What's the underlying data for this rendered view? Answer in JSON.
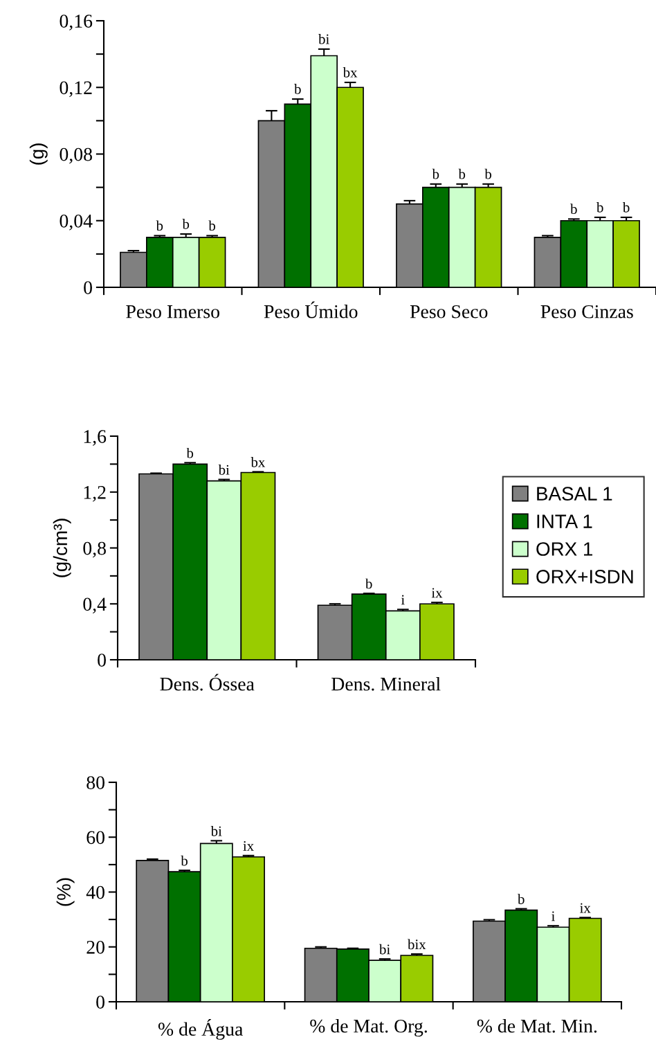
{
  "chart_data": [
    {
      "type": "bar",
      "ylabel": "(g)",
      "categories": [
        "Peso Imerso",
        "Peso Úmido",
        "Peso Seco",
        "Peso Cinzas"
      ],
      "ylim": [
        0,
        0.16
      ],
      "yticks": [
        {
          "value": 0,
          "label": "0"
        },
        {
          "value": 0.02,
          "label": null
        },
        {
          "value": 0.04,
          "label": "0,04"
        },
        {
          "value": 0.06,
          "label": null
        },
        {
          "value": 0.08,
          "label": "0,08"
        },
        {
          "value": 0.1,
          "label": null
        },
        {
          "value": 0.12,
          "label": "0,12"
        },
        {
          "value": 0.14,
          "label": null
        },
        {
          "value": 0.16,
          "label": "0,16"
        }
      ],
      "grid": false,
      "legend": false,
      "series": [
        {
          "color": "#808080",
          "values": [
            0.021,
            0.1,
            0.05,
            0.03
          ],
          "errors": [
            0.001,
            0.006,
            0.002,
            0.001
          ],
          "value_labels": [
            null,
            null,
            null,
            null
          ]
        },
        {
          "color": "#007000",
          "values": [
            0.03,
            0.11,
            0.06,
            0.04
          ],
          "errors": [
            0.001,
            0.003,
            0.002,
            0.001
          ],
          "value_labels": [
            "b",
            "b",
            "b",
            "b"
          ]
        },
        {
          "color": "#ccffcc",
          "values": [
            0.03,
            0.139,
            0.06,
            0.04
          ],
          "errors": [
            0.002,
            0.004,
            0.002,
            0.002
          ],
          "value_labels": [
            "b",
            "bi",
            "b",
            "b"
          ]
        },
        {
          "color": "#99cc00",
          "values": [
            0.03,
            0.12,
            0.06,
            0.04
          ],
          "errors": [
            0.001,
            0.003,
            0.002,
            0.002
          ],
          "value_labels": [
            "b",
            "bx",
            "b",
            "b"
          ]
        }
      ]
    },
    {
      "type": "bar",
      "ylabel": "(g/cm³)",
      "categories": [
        "Dens. Óssea",
        "Dens. Mineral"
      ],
      "ylim": [
        0,
        1.6
      ],
      "yticks": [
        {
          "value": 0,
          "label": "0"
        },
        {
          "value": 0.2,
          "label": null
        },
        {
          "value": 0.4,
          "label": "0,4"
        },
        {
          "value": 0.6,
          "label": null
        },
        {
          "value": 0.8,
          "label": "0,8"
        },
        {
          "value": 1.0,
          "label": null
        },
        {
          "value": 1.2,
          "label": "1,2"
        },
        {
          "value": 1.4,
          "label": null
        },
        {
          "value": 1.6,
          "label": "1,6"
        }
      ],
      "grid": false,
      "legend": "right",
      "series": [
        {
          "name": "BASAL 1",
          "color": "#808080",
          "values": [
            1.33,
            0.39
          ],
          "errors": [
            0.005,
            0.01
          ],
          "value_labels": [
            null,
            null
          ]
        },
        {
          "name": "INTA 1",
          "color": "#007000",
          "values": [
            1.4,
            0.47
          ],
          "errors": [
            0.01,
            0.005
          ],
          "value_labels": [
            "b",
            "b"
          ]
        },
        {
          "name": "ORX 1",
          "color": "#ccffcc",
          "values": [
            1.28,
            0.35
          ],
          "errors": [
            0.01,
            0.01
          ],
          "value_labels": [
            "bi",
            "i"
          ]
        },
        {
          "name": "ORX+ISDN",
          "color": "#99cc00",
          "values": [
            1.34,
            0.4
          ],
          "errors": [
            0.005,
            0.01
          ],
          "value_labels": [
            "bx",
            "ix"
          ]
        }
      ]
    },
    {
      "type": "bar",
      "ylabel": "(%)",
      "categories": [
        "% de Água",
        "% de Mat. Org.",
        "% de Mat. Min."
      ],
      "ylim": [
        0,
        80
      ],
      "yticks": [
        0,
        {
          "value": 10,
          "label": null
        },
        20,
        {
          "value": 30,
          "label": null
        },
        40,
        {
          "value": 50,
          "label": null
        },
        60,
        {
          "value": 70,
          "label": null
        },
        80
      ],
      "grid": false,
      "legend": false,
      "series": [
        {
          "color": "#808080",
          "values": [
            51.5,
            19.5,
            29.4
          ],
          "errors": [
            0.5,
            0.5,
            0.5
          ],
          "value_labels": [
            null,
            null,
            null
          ]
        },
        {
          "color": "#007000",
          "values": [
            47.4,
            19.2,
            33.4
          ],
          "errors": [
            0.5,
            0.3,
            0.5
          ],
          "value_labels": [
            "b",
            null,
            "b"
          ]
        },
        {
          "color": "#ccffcc",
          "values": [
            57.7,
            15.1,
            27.2
          ],
          "errors": [
            1.0,
            0.5,
            0.5
          ],
          "value_labels": [
            "bi",
            "bi",
            "i"
          ]
        },
        {
          "color": "#99cc00",
          "values": [
            52.8,
            16.9,
            30.4
          ],
          "errors": [
            0.5,
            0.5,
            0.3
          ],
          "value_labels": [
            "ix",
            "bix",
            "ix"
          ]
        }
      ]
    }
  ]
}
